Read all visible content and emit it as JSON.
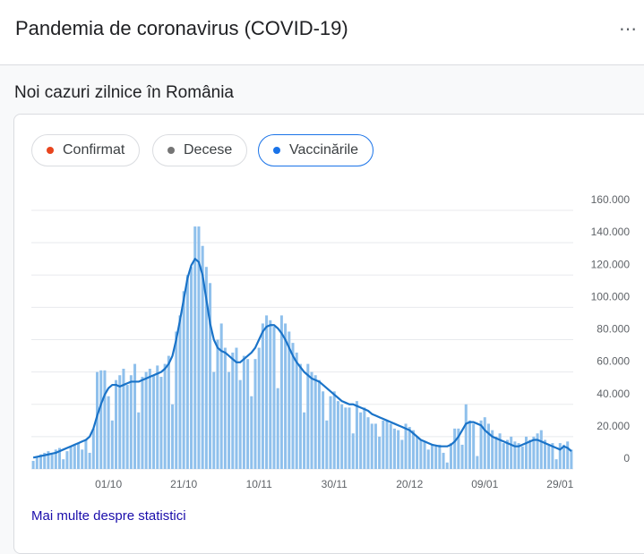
{
  "header": {
    "title": "Pandemia de coronavirus (COVID-19)",
    "menu": "⋯"
  },
  "subtitle": "Noi cazuri zilnice în România",
  "tabs": [
    {
      "label": "Confirmat",
      "color": "#e8451e"
    },
    {
      "label": "Decese",
      "color": "#757575"
    },
    {
      "label": "Vaccinările",
      "color": "#1a73e8",
      "selected": true
    }
  ],
  "chart_data": {
    "type": "bar",
    "categories": [
      null,
      null,
      null,
      null,
      null,
      null,
      null,
      null,
      null,
      null,
      null,
      null,
      null,
      null,
      null,
      null,
      null,
      null,
      null,
      null,
      "01/10",
      null,
      null,
      null,
      null,
      null,
      null,
      null,
      null,
      null,
      null,
      null,
      null,
      null,
      null,
      null,
      null,
      null,
      null,
      null,
      "21/10",
      null,
      null,
      null,
      null,
      null,
      null,
      null,
      null,
      null,
      null,
      null,
      null,
      null,
      null,
      null,
      null,
      null,
      null,
      null,
      "10/11",
      null,
      null,
      null,
      null,
      null,
      null,
      null,
      null,
      null,
      null,
      null,
      null,
      null,
      null,
      null,
      null,
      null,
      null,
      null,
      "30/11",
      null,
      null,
      null,
      null,
      null,
      null,
      null,
      null,
      null,
      null,
      null,
      null,
      null,
      null,
      null,
      null,
      null,
      null,
      null,
      "20/12",
      null,
      null,
      null,
      null,
      null,
      null,
      null,
      null,
      null,
      null,
      null,
      null,
      null,
      null,
      null,
      null,
      null,
      null,
      null,
      "09/01",
      null,
      null,
      null,
      null,
      null,
      null,
      null,
      null,
      null,
      null,
      null,
      null,
      null,
      null,
      null,
      null,
      null,
      null,
      null,
      "29/01",
      null,
      null,
      null
    ],
    "series": [
      {
        "type": "bar",
        "color": "#8fc0ec",
        "values": [
          5000,
          8000,
          9000,
          10000,
          11000,
          9000,
          12000,
          13000,
          6000,
          11000,
          14000,
          15000,
          16000,
          12000,
          18000,
          10000,
          25000,
          60000,
          61000,
          61000,
          45000,
          30000,
          55000,
          58000,
          62000,
          52000,
          58000,
          65000,
          35000,
          57000,
          60000,
          62000,
          58000,
          64000,
          57000,
          65000,
          70000,
          40000,
          85000,
          95000,
          110000,
          120000,
          125000,
          150000,
          150000,
          138000,
          125000,
          115000,
          60000,
          80000,
          90000,
          75000,
          60000,
          72000,
          75000,
          55000,
          70000,
          68000,
          45000,
          68000,
          75000,
          90000,
          95000,
          92000,
          88000,
          50000,
          95000,
          90000,
          85000,
          78000,
          72000,
          65000,
          35000,
          65000,
          60000,
          58000,
          55000,
          48000,
          30000,
          45000,
          48000,
          42000,
          40000,
          38000,
          38000,
          22000,
          42000,
          35000,
          38000,
          32000,
          28000,
          28000,
          20000,
          30000,
          30000,
          28000,
          25000,
          24000,
          18000,
          28000,
          26000,
          24000,
          20000,
          18000,
          17000,
          12000,
          15000,
          14000,
          15000,
          10000,
          4000,
          16000,
          25000,
          25000,
          15000,
          40000,
          30000,
          28000,
          8000,
          30000,
          32000,
          28000,
          24000,
          20000,
          22000,
          16000,
          18000,
          20000,
          17000,
          16000,
          14000,
          20000,
          18000,
          20000,
          22000,
          24000,
          18000,
          15000,
          16000,
          6000,
          16000,
          15000,
          17000,
          12000
        ]
      },
      {
        "type": "line",
        "color": "#1a73c8",
        "values": [
          7000,
          7500,
          8000,
          8500,
          9000,
          9500,
          10000,
          11000,
          12000,
          13000,
          14000,
          15000,
          16000,
          17000,
          18000,
          20000,
          25000,
          33000,
          40000,
          46000,
          50000,
          52000,
          52000,
          51000,
          52000,
          53000,
          54000,
          54000,
          54000,
          55000,
          56000,
          57000,
          58000,
          59000,
          60000,
          62000,
          65000,
          70000,
          80000,
          92000,
          105000,
          118000,
          126000,
          130000,
          128000,
          120000,
          105000,
          90000,
          80000,
          75000,
          73000,
          72000,
          70000,
          68000,
          66000,
          66000,
          68000,
          70000,
          72000,
          75000,
          80000,
          85000,
          88000,
          89000,
          89000,
          87000,
          84000,
          80000,
          75000,
          70000,
          66000,
          63000,
          60000,
          58000,
          56000,
          55000,
          54000,
          52000,
          50000,
          48000,
          46000,
          44000,
          42000,
          41000,
          40000,
          40000,
          39000,
          38000,
          37000,
          36000,
          34000,
          33000,
          32000,
          31000,
          30000,
          29000,
          28000,
          27000,
          26000,
          25000,
          24000,
          22000,
          20000,
          18000,
          17000,
          16000,
          15000,
          14500,
          14000,
          14000,
          14000,
          15000,
          17000,
          20000,
          24000,
          28000,
          29000,
          29000,
          28000,
          27000,
          24000,
          22000,
          20000,
          19000,
          18000,
          17000,
          16000,
          15000,
          14000,
          14000,
          15000,
          16000,
          17000,
          18000,
          18000,
          17000,
          16000,
          15000,
          14000,
          13000,
          12000,
          14000,
          13000,
          11000
        ]
      }
    ],
    "ylim": [
      0,
      160000
    ],
    "yticks": [
      0,
      {
        "value": 20000,
        "label": "20.000"
      },
      {
        "value": 40000,
        "label": "40.000"
      },
      {
        "value": 60000,
        "label": "60.000"
      },
      {
        "value": 80000,
        "label": "80.000"
      },
      {
        "value": 100000,
        "label": "100.000"
      },
      {
        "value": 120000,
        "label": "120.000"
      },
      {
        "value": 140000,
        "label": "140.000"
      },
      {
        "value": 160000,
        "label": "160.000"
      }
    ],
    "grid": true
  },
  "link": "Mai multe despre statistici"
}
